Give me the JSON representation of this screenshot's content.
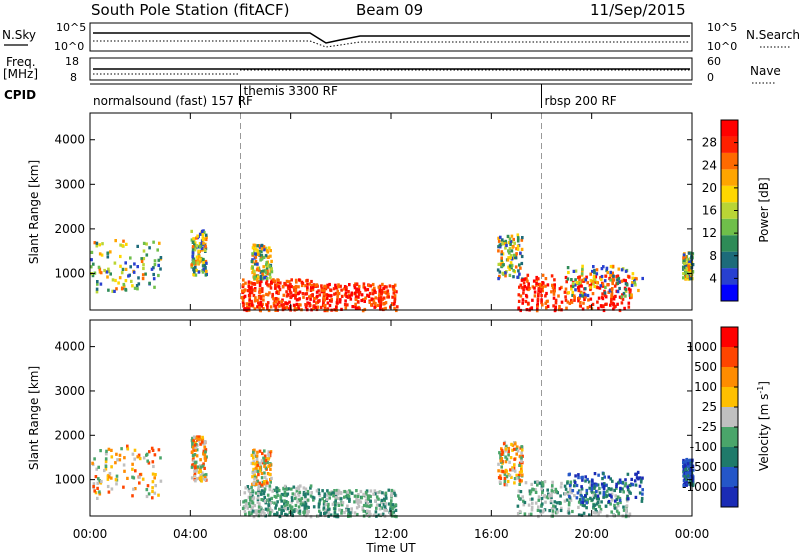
{
  "header": {
    "station": "South Pole Station (fitACF)",
    "beam": "Beam 09",
    "date": "11/Sep/2015"
  },
  "params": {
    "nsky_label": "N.Sky",
    "nsearch_label": "N.Search",
    "freq_label": "Freq.",
    "freq_unit": "[MHz]",
    "nave_label": "Nave",
    "cpid_label": "CPID",
    "noise_ticks": [
      "10^5",
      "10^0"
    ],
    "freq_ticks": [
      "18",
      "8"
    ],
    "nave_ticks": [
      "60",
      "0"
    ]
  },
  "cpid_segments": [
    {
      "label": "normalsound (fast) 157 RF",
      "start_hour": 0
    },
    {
      "label": "themis 3300 RF",
      "start_hour": 6
    },
    {
      "label": "rbsp 200 RF",
      "start_hour": 18
    }
  ],
  "chart_data": [
    {
      "type": "heatmap",
      "parameter": "power",
      "ylabel": "Slant Range [km]",
      "xlabel": "Time UT",
      "ylim": [
        180,
        4600
      ],
      "y_ticks": [
        "1000",
        "2000",
        "3000",
        "4000"
      ],
      "x_ticks": [
        "00:00",
        "04:00",
        "08:00",
        "12:00",
        "16:00",
        "20:00",
        "00:00"
      ],
      "x_range_hours": [
        0,
        24
      ],
      "colorbar": {
        "label": "Power [dB]",
        "ticks": [
          "28",
          "24",
          "20",
          "16",
          "12",
          "8",
          "4"
        ],
        "colors": [
          "#0000ff",
          "#2840d0",
          "#1d6b7a",
          "#2e8b57",
          "#6fbf4a",
          "#b9d535",
          "#ffd700",
          "#ffa500",
          "#ff6a00",
          "#ff2000",
          "#ff0000"
        ]
      }
    },
    {
      "type": "heatmap",
      "parameter": "velocity",
      "ylabel": "Slant Range [km]",
      "xlabel": "Time UT",
      "ylim": [
        180,
        4600
      ],
      "y_ticks": [
        "1000",
        "2000",
        "3000",
        "4000"
      ],
      "x_ticks": [
        "00:00",
        "04:00",
        "08:00",
        "12:00",
        "16:00",
        "20:00",
        "00:00"
      ],
      "x_range_hours": [
        0,
        24
      ],
      "colorbar": {
        "label": "Velocity [m s",
        "label_sup": "-1",
        "label_end": "]",
        "ticks": [
          "1000",
          "500",
          "100",
          "25",
          "-25",
          "-100",
          "-500",
          "-1000"
        ],
        "colors": [
          "#1a2bb5",
          "#2456c8",
          "#1f7a6a",
          "#4aa56a",
          "#c0c0c0",
          "#ffc000",
          "#ff8c00",
          "#ff4500",
          "#ff0000"
        ]
      }
    }
  ],
  "echo_regions": [
    {
      "t0": 0.0,
      "t1": 2.8,
      "r0": 600,
      "r1": 1800,
      "kind": "patch"
    },
    {
      "t0": 4.0,
      "t1": 4.6,
      "r0": 1000,
      "r1": 2000,
      "kind": "patch"
    },
    {
      "t0": 6.0,
      "t1": 8.8,
      "r0": 200,
      "r1": 900,
      "kind": "strong"
    },
    {
      "t0": 6.4,
      "t1": 7.2,
      "r0": 900,
      "r1": 1700,
      "kind": "patch"
    },
    {
      "t0": 8.8,
      "t1": 12.2,
      "r0": 200,
      "r1": 800,
      "kind": "strong"
    },
    {
      "t0": 16.2,
      "t1": 17.2,
      "r0": 900,
      "r1": 1900,
      "kind": "patch"
    },
    {
      "t0": 17.0,
      "t1": 21.5,
      "r0": 200,
      "r1": 1000,
      "kind": "strong"
    },
    {
      "t0": 19.0,
      "t1": 22.0,
      "r0": 500,
      "r1": 1200,
      "kind": "patch"
    },
    {
      "t0": 23.6,
      "t1": 24.0,
      "r0": 900,
      "r1": 1500,
      "kind": "patch"
    }
  ]
}
